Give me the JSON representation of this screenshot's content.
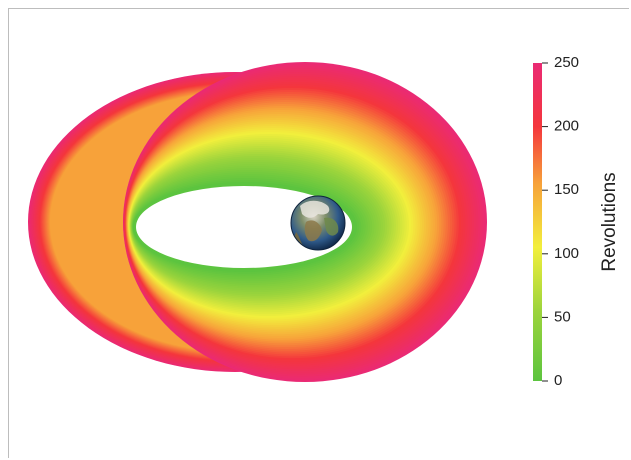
{
  "chart_data": {
    "type": "heatmap",
    "title": "",
    "colorbar": {
      "label": "Revolutions",
      "min": 0,
      "max": 250,
      "ticks": [
        0,
        50,
        100,
        150,
        200,
        250
      ],
      "tick_labels": [
        "0",
        "50",
        "100",
        "150",
        "200",
        "250"
      ],
      "colors": [
        "#5cc43f",
        "#f2ef3c",
        "#f4363c",
        "#ea2a74"
      ]
    },
    "orbit_band": {
      "description_value_inner": 0,
      "description_value_outer": 250
    },
    "central_body": "earth-icon",
    "grid": false
  },
  "colors": {
    "background": "#ffffff",
    "frame": "#bdbdbd"
  }
}
